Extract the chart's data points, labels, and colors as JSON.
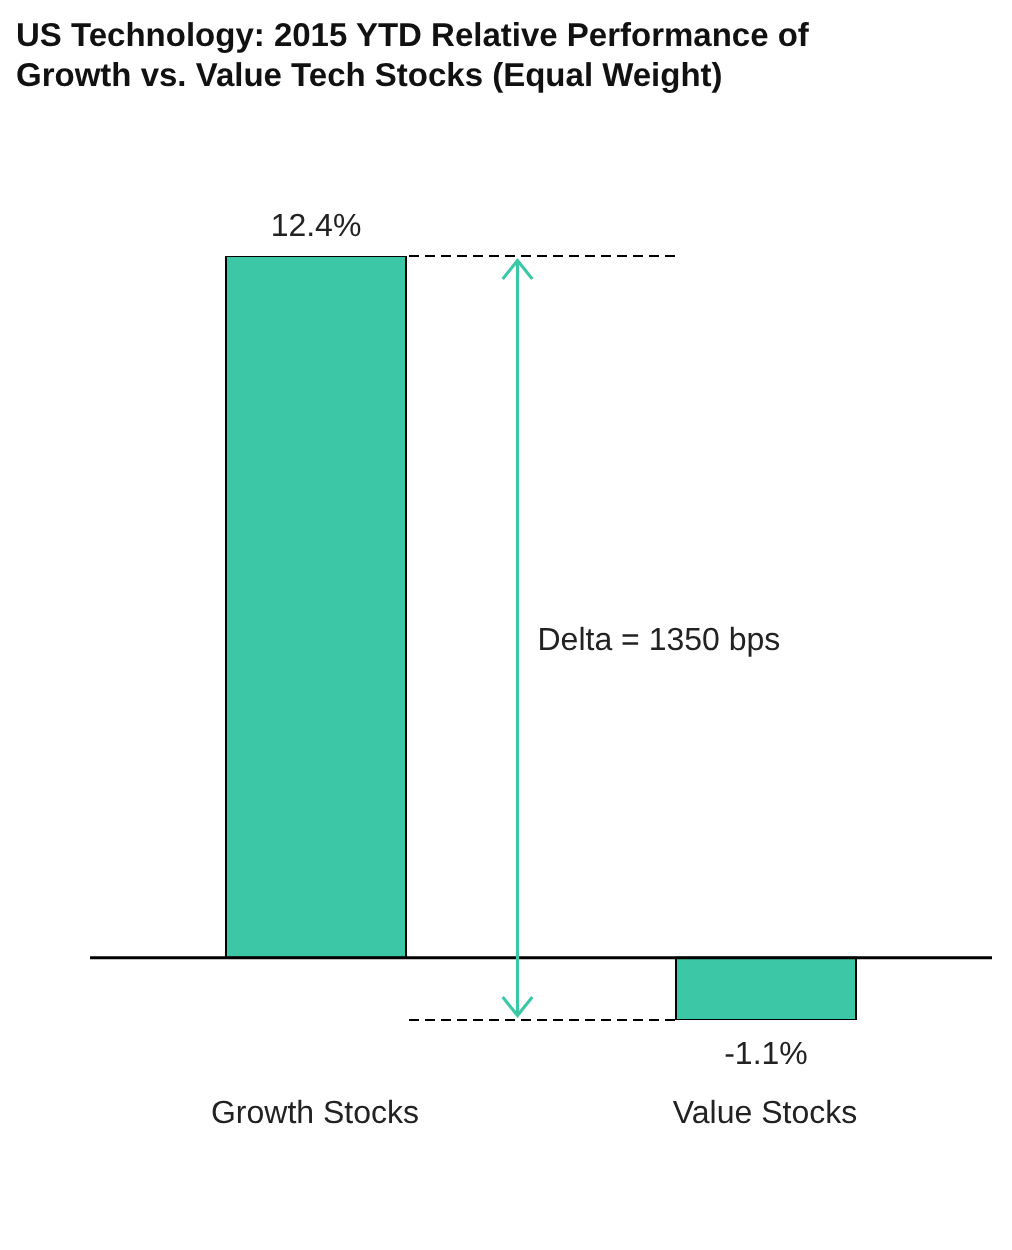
{
  "chart_data": {
    "type": "bar",
    "title": "US Technology: 2015 YTD Relative Performance of Growth vs. Value Tech Stocks (Equal Weight)",
    "categories": [
      "Growth Stocks",
      "Value Stocks"
    ],
    "values": [
      12.4,
      -1.1
    ],
    "value_labels": [
      "12.4%",
      "-1.1%"
    ],
    "color": "#3cc8a6",
    "annotations": [
      "Delta = 1350 bps"
    ],
    "ref_lines": [
      {
        "axis": "y",
        "value": 12.4,
        "label": null,
        "line_style": "dashed",
        "color": "#000000"
      },
      {
        "axis": "y",
        "value": -1.1,
        "label": null,
        "line_style": "dashed",
        "color": "#000000"
      }
    ],
    "legend": false
  }
}
